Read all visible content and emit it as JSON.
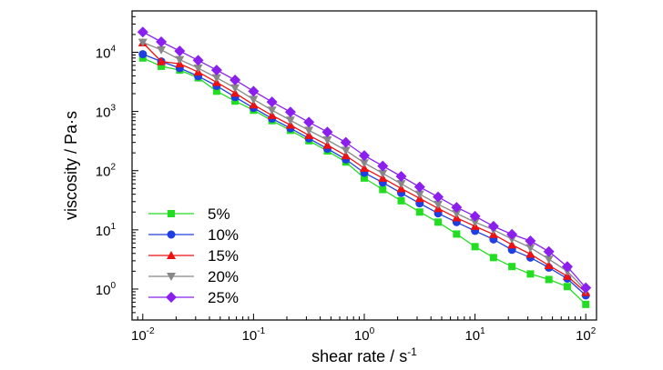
{
  "chart_data": {
    "type": "line",
    "xlabel": "shear rate / s",
    "xlabel_exp": "-1",
    "ylabel": "viscosity / Pa·s",
    "xscale": "log",
    "yscale": "log",
    "xlim": [
      0.008,
      125
    ],
    "ylim": [
      0.3,
      50000
    ],
    "grid": false,
    "legend_position": "bottom-left",
    "x_ticks": [
      {
        "base": "10",
        "exp": "-2",
        "value": 0.01
      },
      {
        "base": "10",
        "exp": "-1",
        "value": 0.1
      },
      {
        "base": "10",
        "exp": "0",
        "value": 1
      },
      {
        "base": "10",
        "exp": "1",
        "value": 10
      },
      {
        "base": "10",
        "exp": "2",
        "value": 100
      }
    ],
    "y_ticks": [
      {
        "base": "10",
        "exp": "0",
        "value": 1
      },
      {
        "base": "10",
        "exp": "1",
        "value": 10
      },
      {
        "base": "10",
        "exp": "2",
        "value": 100
      },
      {
        "base": "10",
        "exp": "3",
        "value": 1000
      },
      {
        "base": "10",
        "exp": "4",
        "value": 10000
      }
    ],
    "x": [
      0.01,
      0.01468,
      0.02154,
      0.03162,
      0.04642,
      0.06813,
      0.1,
      0.1468,
      0.2154,
      0.3162,
      0.4642,
      0.6813,
      1,
      1.468,
      2.154,
      3.162,
      4.642,
      6.813,
      10,
      14.68,
      21.54,
      31.62,
      46.42,
      68.13,
      100
    ],
    "series": [
      {
        "name": "5%",
        "color": "#22dd22",
        "marker": "square",
        "values": [
          8000,
          5800,
          5000,
          3700,
          2200,
          1500,
          1050,
          700,
          480,
          320,
          215,
          140,
          75,
          48,
          31,
          20,
          13.5,
          8.5,
          5.2,
          3.4,
          2.4,
          1.8,
          1.45,
          1.1,
          0.55
        ]
      },
      {
        "name": "10%",
        "color": "#1f3fe0",
        "marker": "circle",
        "values": [
          9300,
          7000,
          5400,
          3950,
          2700,
          1750,
          1150,
          760,
          520,
          350,
          235,
          155,
          92,
          63,
          42,
          28,
          19,
          13.5,
          9.6,
          6.9,
          4.6,
          3.4,
          2.3,
          1.5,
          0.78
        ]
      },
      {
        "name": "15%",
        "color": "#ee1111",
        "marker": "triangle",
        "values": [
          14500,
          7000,
          6400,
          4650,
          3100,
          2050,
          1300,
          860,
          590,
          395,
          270,
          180,
          110,
          75,
          50,
          34,
          23,
          16,
          11.5,
          8.4,
          5.6,
          3.9,
          2.5,
          1.65,
          0.88
        ]
      },
      {
        "name": "20%",
        "color": "#888888",
        "marker": "triangle-down",
        "values": [
          14700,
          11000,
          7500,
          5400,
          3700,
          2500,
          1600,
          1050,
          710,
          480,
          330,
          220,
          135,
          90,
          60,
          40,
          27,
          19,
          13.5,
          10,
          7,
          5,
          3.2,
          2,
          0.95
        ]
      },
      {
        "name": "25%",
        "color": "#8b20ee",
        "marker": "diamond",
        "values": [
          22000,
          15000,
          10500,
          7300,
          5000,
          3400,
          2200,
          1450,
          980,
          660,
          450,
          300,
          180,
          120,
          80,
          53,
          36,
          24,
          17,
          11.5,
          8.4,
          6.5,
          4.3,
          2.4,
          1.05
        ]
      }
    ]
  }
}
